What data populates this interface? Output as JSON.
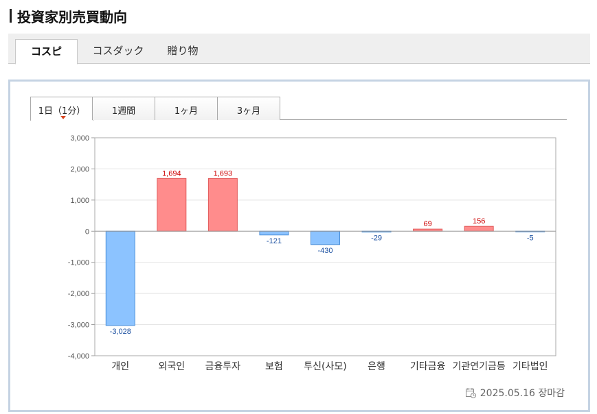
{
  "header": {
    "title": "投資家別売買動向"
  },
  "main_tabs": [
    {
      "label": "コスピ",
      "active": true
    },
    {
      "label": "コスダック",
      "active": false
    },
    {
      "label": "贈り物",
      "active": false
    }
  ],
  "period_tabs": [
    {
      "label": "1日（1分）",
      "active": true
    },
    {
      "label": "1週間",
      "active": false
    },
    {
      "label": "1ヶ月",
      "active": false
    },
    {
      "label": "3ヶ月",
      "active": false
    }
  ],
  "footer": {
    "icon": "calendar-icon",
    "date_text": "2025.05.16 장마감"
  },
  "colors": {
    "positive_fill": "#ff8c8c",
    "positive_stroke": "#e05a5a",
    "negative_fill": "#8cc3ff",
    "negative_stroke": "#4b8fd8",
    "positive_label": "#cc0000",
    "negative_label": "#1a4fa0",
    "panel_border": "#c5d3e3"
  },
  "chart_data": {
    "type": "bar",
    "categories": [
      "개인",
      "외국인",
      "금융투자",
      "보험",
      "투신(사모)",
      "은행",
      "기타금융",
      "기관연기금등",
      "기타법인"
    ],
    "values": [
      -3028,
      1694,
      1693,
      -121,
      -430,
      -29,
      69,
      156,
      -5
    ],
    "value_labels": [
      "-3,028",
      "1,694",
      "1,693",
      "-121",
      "-430",
      "-29",
      "69",
      "156",
      "-5"
    ],
    "y_ticks": [
      3000,
      2000,
      1000,
      0,
      -1000,
      -2000,
      -3000,
      -4000
    ],
    "y_tick_labels": [
      "3,000",
      "2,000",
      "1,000",
      "0",
      "-1,000",
      "-2,000",
      "-3,000",
      "-4,000"
    ],
    "ylim": [
      -4000,
      3000
    ],
    "grid": true,
    "title": "",
    "xlabel": "",
    "ylabel": ""
  }
}
